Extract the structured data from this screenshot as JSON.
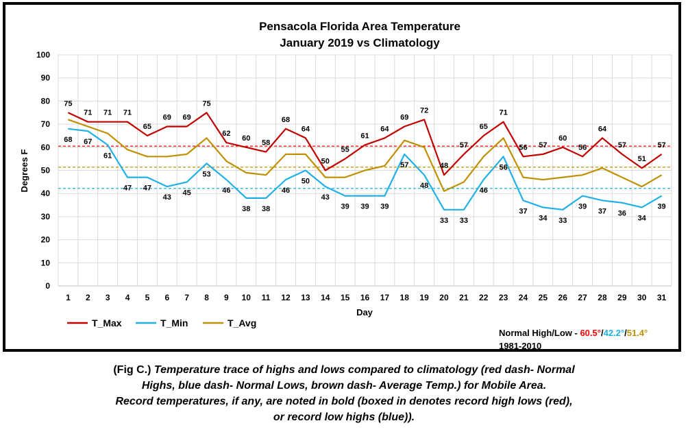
{
  "chart_data": {
    "type": "line",
    "title": "Pensacola Florida Area Temperature",
    "subtitle": "January 2019 vs Climatology",
    "xlabel": "Day",
    "ylabel": "Degrees F",
    "ylim": [
      0,
      100
    ],
    "ytick_step": 10,
    "grid": true,
    "legend": "bottom-left",
    "x": [
      1,
      2,
      3,
      4,
      5,
      6,
      7,
      8,
      9,
      10,
      11,
      12,
      13,
      14,
      15,
      16,
      17,
      18,
      19,
      20,
      21,
      22,
      23,
      24,
      25,
      26,
      27,
      28,
      29,
      30,
      31
    ],
    "series": [
      {
        "name": "T_Max",
        "color": "#c00000",
        "labeled": true,
        "values": [
          75,
          71,
          71,
          71,
          65,
          69,
          69,
          75,
          62,
          60,
          58,
          68,
          64,
          50,
          55,
          61,
          64,
          69,
          72,
          48,
          57,
          65,
          71,
          56,
          57,
          60,
          56,
          64,
          57,
          51,
          57
        ]
      },
      {
        "name": "T_Min",
        "color": "#1fb0e6",
        "labeled": true,
        "values": [
          68,
          67,
          61,
          47,
          47,
          43,
          45,
          53,
          46,
          38,
          38,
          46,
          50,
          43,
          39,
          39,
          39,
          57,
          48,
          33,
          33,
          46,
          56,
          37,
          34,
          33,
          39,
          37,
          36,
          34,
          39
        ]
      },
      {
        "name": "T_Avg",
        "color": "#bf9000",
        "labeled": false,
        "values": [
          72,
          69,
          66,
          59,
          56,
          56,
          57,
          64,
          54,
          49,
          48,
          57,
          57,
          47,
          47,
          50,
          52,
          63,
          60,
          41,
          45,
          56,
          64,
          47,
          46,
          47,
          48,
          51,
          47,
          43,
          48
        ]
      }
    ],
    "reference_lines": [
      {
        "value": 60.5,
        "color": "#ff0000"
      },
      {
        "value": 42.2,
        "color": "#1fb0e6"
      },
      {
        "value": 51.4,
        "color": "#bf9000"
      }
    ],
    "normals": {
      "label": "Normal High/Low - ",
      "high": "60.5°",
      "sep1": "/",
      "low": "42.2°",
      "sep2": "/",
      "avg": "51.4°",
      "period": "1981-2010",
      "high_color": "#ff0000",
      "low_color": "#1fb0e6",
      "avg_color": "#bf9000"
    }
  },
  "caption": {
    "lead": "(Fig C.) ",
    "line1": "Temperature trace of highs and lows compared to climatology (red dash- Normal",
    "line2": "Highs, blue dash- Normal Lows, brown dash- Average Temp.) for Mobile Area.",
    "line3": "Record temperatures, if any, are noted in bold (boxed in denotes record high lows (red),",
    "line4": "or record low highs (blue))."
  }
}
